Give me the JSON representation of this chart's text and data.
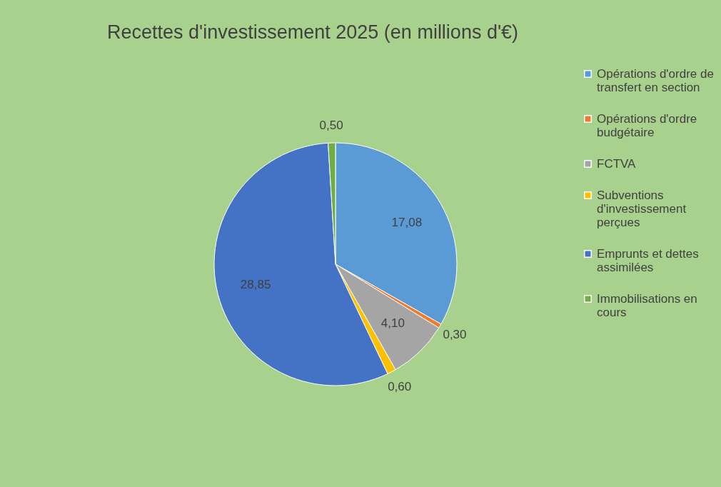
{
  "chart_data": {
    "type": "pie",
    "title": "Recettes d'investissement 2025 (en millions d'€)",
    "categories": [
      "Opérations d'ordre de transfert en section",
      "Opérations d'ordre budgétaire",
      "FCTVA",
      "Subventions d'investissement perçues",
      "Emprunts et dettes assimilées",
      "Immobilisations en cours"
    ],
    "values": [
      17.08,
      0.3,
      4.1,
      0.6,
      28.85,
      0.5
    ],
    "value_labels": [
      "17,08",
      "0,30",
      "4,10",
      "0,60",
      "28,85",
      "0,50"
    ],
    "colors": [
      "#5b9bd5",
      "#ed7d31",
      "#a5a5a5",
      "#ffc000",
      "#4472c4",
      "#70ad47"
    ],
    "legend": "right"
  }
}
